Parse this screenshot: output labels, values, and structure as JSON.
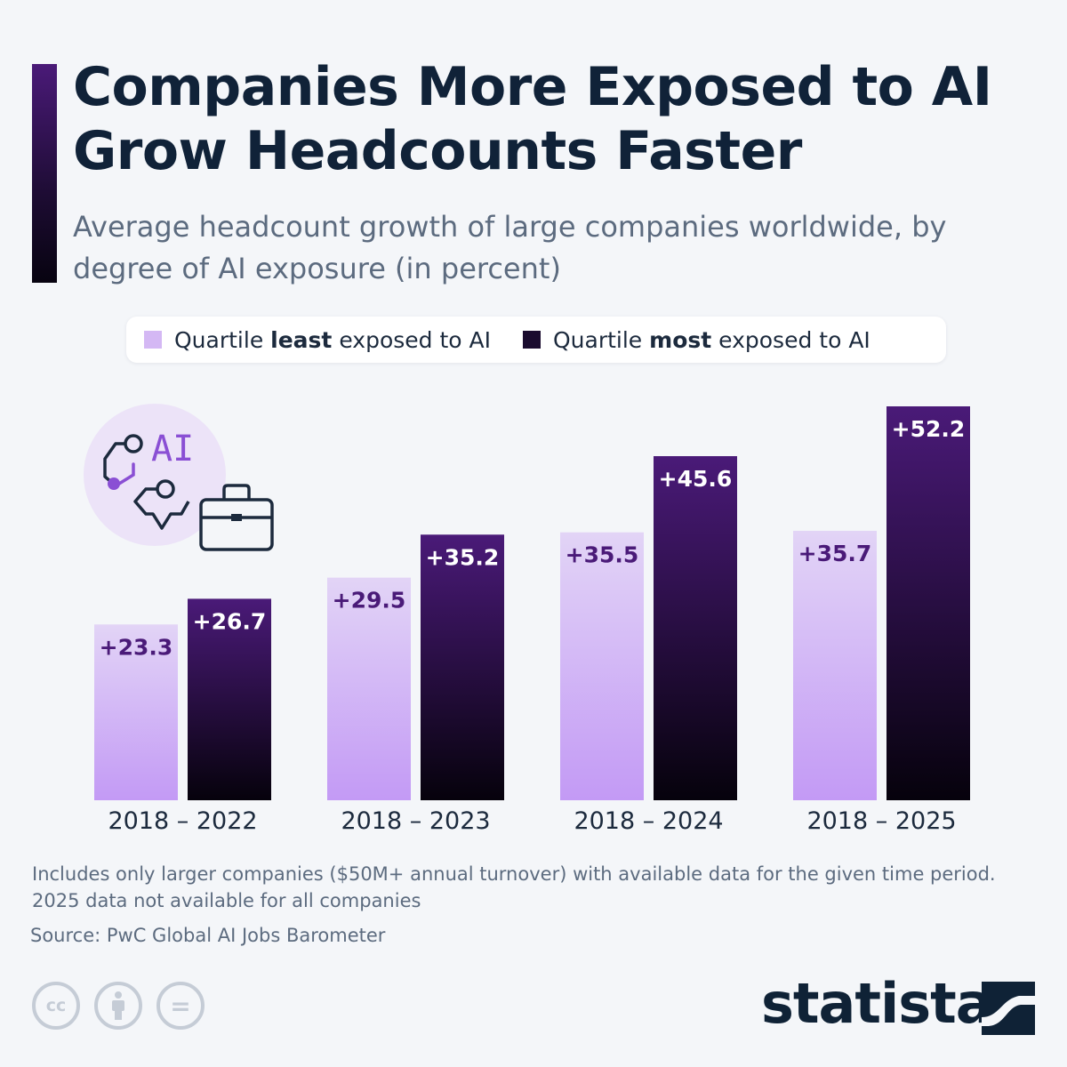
{
  "header": {
    "title": "Companies More Exposed to AI Grow Headcounts Faster",
    "subtitle": "Average headcount growth of large companies worldwide, by degree of AI exposure (in percent)"
  },
  "legend": {
    "least": {
      "prefix": "Quartile ",
      "bold": "least",
      "suffix": " exposed to AI",
      "color": "#d4b8f4"
    },
    "most": {
      "prefix": "Quartile ",
      "bold": "most",
      "suffix": " exposed to AI",
      "color": "#1a0b2e"
    }
  },
  "badge": {
    "text": "AI",
    "icon": "ai-circuit-briefcase-icon"
  },
  "chart_data": {
    "type": "bar",
    "categories": [
      "2018 – 2022",
      "2018 – 2023",
      "2018 – 2024",
      "2018 – 2025"
    ],
    "series": [
      {
        "name": "Quartile least exposed to AI",
        "values": [
          23.3,
          29.5,
          35.5,
          35.7
        ],
        "labels": [
          "+23.3",
          "+29.5",
          "+35.5",
          "+35.7"
        ],
        "color": "#d4b8f4",
        "label_color": "#4a1a78"
      },
      {
        "name": "Quartile most exposed to AI",
        "values": [
          26.7,
          35.2,
          45.6,
          52.2
        ],
        "labels": [
          "+26.7",
          "+35.2",
          "+45.6",
          "+52.2"
        ],
        "color": "#1a0b2e",
        "label_color": "#ffffff"
      }
    ],
    "ylim": [
      0,
      52.2
    ],
    "grid": false,
    "legend_position": "top"
  },
  "footer": {
    "note": "Includes only larger companies ($50M+ annual turnover) with available data for the given time period. 2025 data not available for all companies",
    "source": "Source: PwC Global AI Jobs Barometer",
    "license_icons": [
      "cc-icon",
      "attribution-icon",
      "no-derivatives-icon"
    ],
    "license_text": [
      "cc",
      "",
      "="
    ],
    "brand": "statista"
  }
}
